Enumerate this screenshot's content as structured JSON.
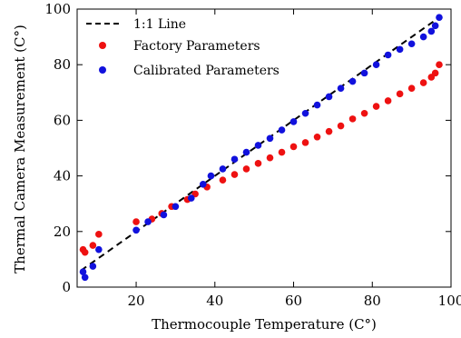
{
  "chart_data": {
    "type": "scatter",
    "xlabel": "Thermocouple Temperature (C°)",
    "ylabel": "Thermal Camera Measurement (C°)",
    "xlim": [
      5,
      100
    ],
    "ylim": [
      0,
      100
    ],
    "x_ticks": [
      20,
      40,
      60,
      80,
      100
    ],
    "y_ticks": [
      0,
      20,
      40,
      60,
      80,
      100
    ],
    "legend_position": "top-left",
    "grid": false,
    "reference_line": {
      "name": "1:1 Line",
      "style": "dashed",
      "color": "#000000",
      "x": [
        6,
        97
      ],
      "y": [
        6,
        97
      ]
    },
    "series": [
      {
        "name": "Factory Parameters",
        "color": "#ee1111",
        "x": [
          6.5,
          7,
          9,
          10.5,
          20,
          24,
          26.5,
          29,
          33,
          35,
          38,
          42,
          45,
          48,
          51,
          54,
          57,
          60,
          63,
          66,
          69,
          72,
          75,
          78,
          81,
          84,
          87,
          90,
          93,
          95,
          96,
          97
        ],
        "y": [
          13.5,
          12.5,
          15,
          19,
          23.5,
          24.5,
          26.5,
          29,
          31.5,
          33.5,
          36,
          38.5,
          40.5,
          42.5,
          44.5,
          46.5,
          48.5,
          50.5,
          52,
          54,
          56,
          58,
          60.5,
          62.5,
          65,
          67,
          69.5,
          71.5,
          73.5,
          75.5,
          77,
          80
        ]
      },
      {
        "name": "Calibrated Parameters",
        "color": "#1111dd",
        "x": [
          6.5,
          7,
          9,
          10.5,
          20,
          23,
          27,
          30,
          34,
          37,
          39,
          42,
          45,
          48,
          51,
          54,
          57,
          60,
          63,
          66,
          69,
          72,
          75,
          78,
          81,
          84,
          87,
          90,
          93,
          95,
          96,
          97
        ],
        "y": [
          5.5,
          3.5,
          7.5,
          13.5,
          20.5,
          23.5,
          26,
          29,
          32,
          37,
          40,
          42.5,
          46,
          48.5,
          51,
          53.5,
          56.5,
          59.5,
          62.5,
          65.5,
          68.5,
          71.5,
          74,
          77,
          80,
          83.5,
          85.5,
          87.5,
          90,
          92,
          94,
          97
        ]
      }
    ]
  }
}
